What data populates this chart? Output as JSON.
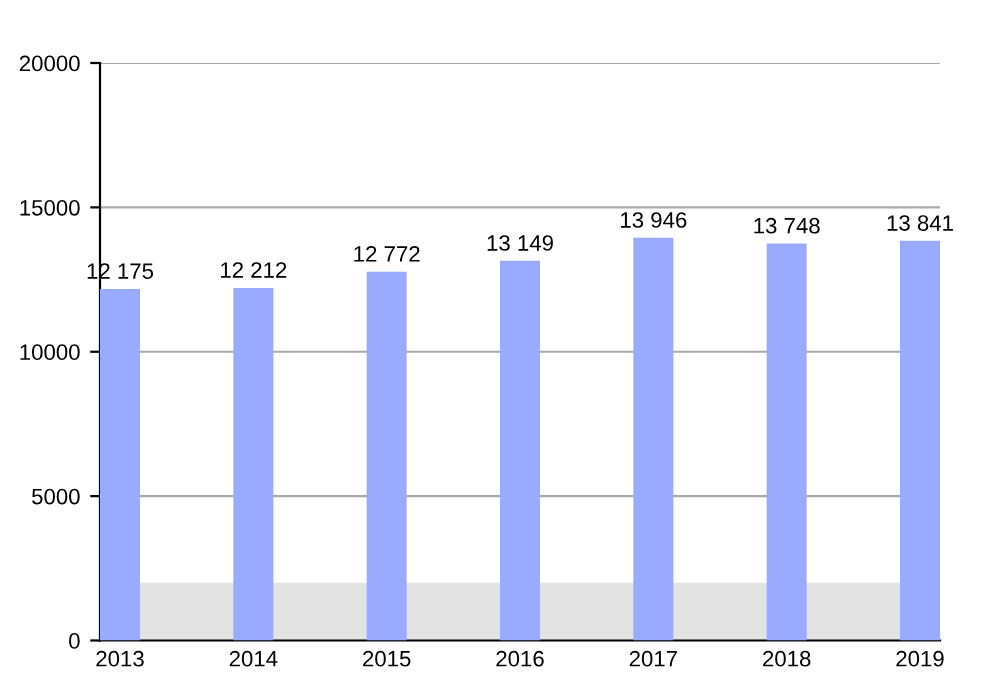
{
  "chart_data": {
    "type": "bar",
    "categories": [
      "2013",
      "2014",
      "2015",
      "2016",
      "2017",
      "2018",
      "2019"
    ],
    "values": [
      12175,
      12212,
      12772,
      13149,
      13946,
      13748,
      13841
    ],
    "value_labels": [
      "12 175",
      "12 212",
      "12 772",
      "13 149",
      "13 946",
      "13 748",
      "13 841"
    ],
    "color": "#99aaff",
    "ylim": [
      0,
      20000
    ],
    "yticks": [
      0,
      5000,
      10000,
      15000,
      20000
    ],
    "grid": "y",
    "bands": [
      {
        "axis": "y",
        "from": 0,
        "to": 2000,
        "color": "#e3e3e3"
      }
    ]
  }
}
